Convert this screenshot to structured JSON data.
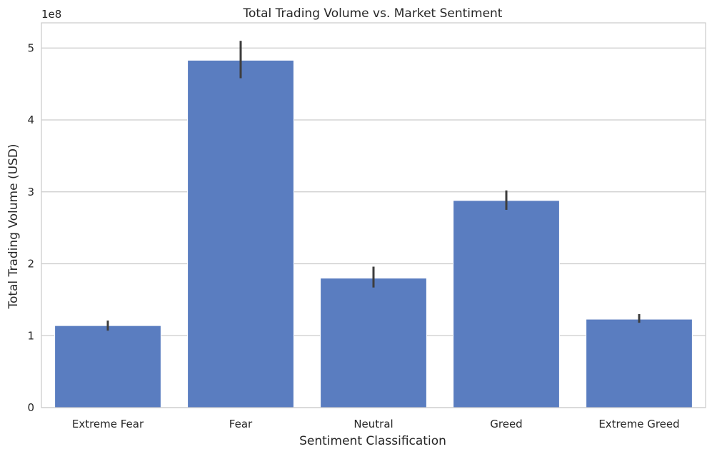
{
  "chart_data": {
    "type": "bar",
    "title": "Total Trading Volume vs. Market Sentiment",
    "xlabel": "Sentiment Classification",
    "ylabel": "Total Trading Volume (USD)",
    "y_offset_label": "1e8",
    "categories": [
      "Extreme Fear",
      "Fear",
      "Neutral",
      "Greed",
      "Extreme Greed"
    ],
    "values": [
      114000000,
      483000000,
      180000000,
      288000000,
      123000000
    ],
    "error_low": [
      107000000,
      458000000,
      167000000,
      275000000,
      118000000
    ],
    "error_high": [
      121000000,
      510000000,
      196000000,
      302000000,
      130000000
    ],
    "ylim": [
      0,
      535000000
    ],
    "yticks": [
      0,
      100000000,
      200000000,
      300000000,
      400000000,
      500000000
    ],
    "ytick_labels": [
      "0",
      "1",
      "2",
      "3",
      "4",
      "5"
    ],
    "grid": "horizontal",
    "bar_color": "#5a7dc0",
    "error_color": "#3d3d3d"
  }
}
